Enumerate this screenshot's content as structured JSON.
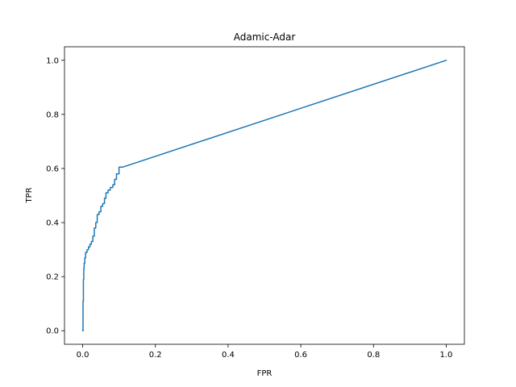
{
  "chart_data": {
    "type": "line",
    "title": "Adamic-Adar",
    "xlabel": "FPR",
    "ylabel": "TPR",
    "xlim": [
      -0.05,
      1.05
    ],
    "ylim": [
      -0.05,
      1.05
    ],
    "xticks": [
      0.0,
      0.2,
      0.4,
      0.6,
      0.8,
      1.0
    ],
    "xtick_labels": [
      "0.0",
      "0.2",
      "0.4",
      "0.6",
      "0.8",
      "1.0"
    ],
    "yticks": [
      0.0,
      0.2,
      0.4,
      0.6,
      0.8,
      1.0
    ],
    "ytick_labels": [
      "0.0",
      "0.2",
      "0.4",
      "0.6",
      "0.8",
      "1.0"
    ],
    "grid": false,
    "series": [
      {
        "color": "#1f77b4",
        "x": [
          0.0,
          0.001,
          0.001,
          0.002,
          0.002,
          0.003,
          0.003,
          0.004,
          0.004,
          0.006,
          0.006,
          0.008,
          0.008,
          0.012,
          0.012,
          0.016,
          0.016,
          0.02,
          0.02,
          0.024,
          0.024,
          0.028,
          0.028,
          0.032,
          0.032,
          0.036,
          0.036,
          0.04,
          0.04,
          0.045,
          0.045,
          0.05,
          0.05,
          0.055,
          0.055,
          0.06,
          0.06,
          0.064,
          0.064,
          0.07,
          0.07,
          0.076,
          0.076,
          0.083,
          0.083,
          0.088,
          0.088,
          0.093,
          0.093,
          0.1,
          0.1,
          0.11,
          1.0
        ],
        "y": [
          0.0,
          0.0,
          0.11,
          0.11,
          0.19,
          0.19,
          0.23,
          0.23,
          0.25,
          0.25,
          0.27,
          0.27,
          0.29,
          0.29,
          0.3,
          0.3,
          0.31,
          0.31,
          0.32,
          0.32,
          0.33,
          0.33,
          0.35,
          0.35,
          0.38,
          0.38,
          0.4,
          0.4,
          0.43,
          0.43,
          0.44,
          0.44,
          0.46,
          0.46,
          0.47,
          0.47,
          0.49,
          0.49,
          0.51,
          0.51,
          0.52,
          0.52,
          0.53,
          0.53,
          0.54,
          0.54,
          0.56,
          0.56,
          0.58,
          0.58,
          0.605,
          0.605,
          1.0
        ]
      }
    ]
  }
}
